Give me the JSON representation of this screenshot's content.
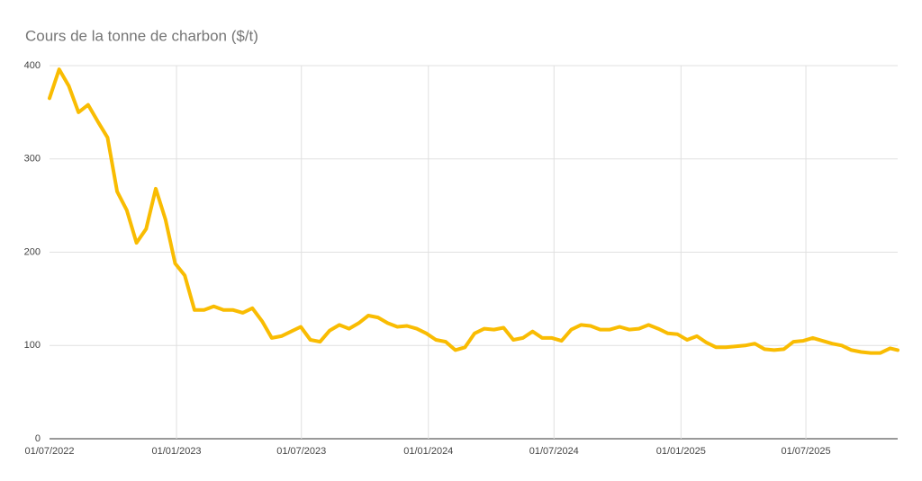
{
  "chart_data": {
    "type": "line",
    "title": "Cours de la tonne de charbon ($/t)",
    "x": [
      "2022-07-01",
      "2022-07-15",
      "2022-07-29",
      "2022-08-12",
      "2022-08-26",
      "2022-09-09",
      "2022-09-23",
      "2022-10-07",
      "2022-10-21",
      "2022-11-04",
      "2022-11-18",
      "2022-12-02",
      "2022-12-16",
      "2022-12-30",
      "2023-01-13",
      "2023-01-27",
      "2023-02-10",
      "2023-02-24",
      "2023-03-10",
      "2023-03-24",
      "2023-04-07",
      "2023-04-21",
      "2023-05-05",
      "2023-05-19",
      "2023-06-02",
      "2023-06-16",
      "2023-06-30",
      "2023-07-14",
      "2023-07-28",
      "2023-08-11",
      "2023-08-25",
      "2023-09-08",
      "2023-09-22",
      "2023-10-06",
      "2023-10-20",
      "2023-11-03",
      "2023-11-17",
      "2023-12-01",
      "2023-12-15",
      "2023-12-29",
      "2024-01-12",
      "2024-01-26",
      "2024-02-09",
      "2024-02-23",
      "2024-03-08",
      "2024-03-22",
      "2024-04-05",
      "2024-04-19",
      "2024-05-03",
      "2024-05-17",
      "2024-05-31",
      "2024-06-14",
      "2024-06-28",
      "2024-07-12",
      "2024-07-26",
      "2024-08-09",
      "2024-08-23",
      "2024-09-06",
      "2024-09-20",
      "2024-10-04",
      "2024-10-18",
      "2024-11-01",
      "2024-11-15",
      "2024-11-29",
      "2024-12-13",
      "2024-12-27",
      "2025-01-10",
      "2025-01-24",
      "2025-02-07",
      "2025-02-21",
      "2025-03-07",
      "2025-03-21",
      "2025-04-04",
      "2025-04-18",
      "2025-05-02",
      "2025-05-16",
      "2025-05-30",
      "2025-06-13",
      "2025-06-27",
      "2025-07-11",
      "2025-07-25",
      "2025-08-08",
      "2025-08-22",
      "2025-09-05",
      "2025-09-19",
      "2025-10-03",
      "2025-10-17",
      "2025-10-31",
      "2025-11-11"
    ],
    "series": [
      {
        "color": "#f9bc02",
        "values": [
          365,
          396,
          378,
          350,
          358,
          340,
          323,
          265,
          245,
          210,
          225,
          268,
          235,
          188,
          175,
          138,
          138,
          142,
          138,
          138,
          135,
          140,
          126,
          108,
          110,
          115,
          120,
          106,
          104,
          116,
          122,
          118,
          124,
          132,
          130,
          124,
          120,
          121,
          118,
          113,
          106,
          104,
          95,
          98,
          113,
          118,
          117,
          119,
          106,
          108,
          115,
          108,
          108,
          105,
          117,
          122,
          121,
          117,
          117,
          120,
          117,
          118,
          122,
          118,
          113,
          112,
          106,
          110,
          103,
          98,
          98,
          99,
          100,
          102,
          96,
          95,
          96,
          104,
          105,
          108,
          105,
          102,
          100,
          95,
          93,
          92,
          92,
          97,
          95
        ]
      }
    ],
    "xlim": [
      "2022-07-01",
      "2025-11-11"
    ],
    "xticks": [
      {
        "value": "2022-07-01",
        "label": "01/07/2022"
      },
      {
        "value": "2023-01-01",
        "label": "01/01/2023"
      },
      {
        "value": "2023-07-01",
        "label": "01/07/2023"
      },
      {
        "value": "2024-01-01",
        "label": "01/01/2024"
      },
      {
        "value": "2024-07-01",
        "label": "01/07/2024"
      },
      {
        "value": "2025-01-01",
        "label": "01/01/2025"
      },
      {
        "value": "2025-07-01",
        "label": "01/07/2025"
      }
    ],
    "ylim": [
      0,
      400
    ],
    "yticks": [
      0,
      100,
      200,
      300,
      400
    ],
    "grid": true
  }
}
